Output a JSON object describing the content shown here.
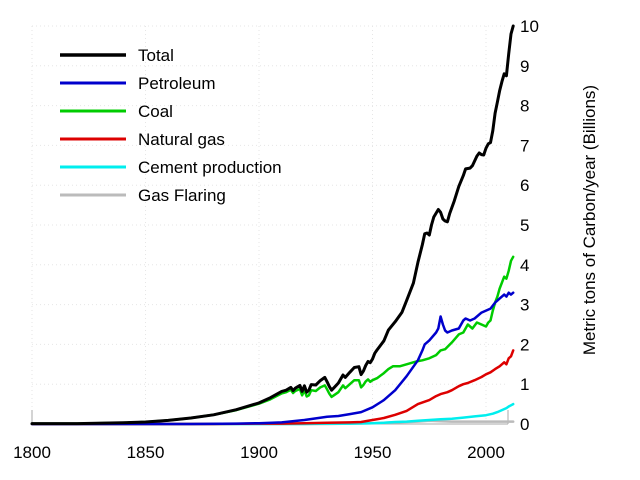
{
  "chart_data": {
    "type": "line",
    "title": "",
    "xlabel": "",
    "ylabel": "Metric tons of Carbon/year (Billions)",
    "xlim": [
      1800,
      2012
    ],
    "ylim": [
      0,
      10
    ],
    "x_ticks": [
      "1800",
      "1850",
      "1900",
      "1950",
      "2000"
    ],
    "y_ticks": [
      "0",
      "1",
      "2",
      "3",
      "4",
      "5",
      "6",
      "7",
      "8",
      "9",
      "10"
    ],
    "grid": true,
    "legend_position": "top-left",
    "series": [
      {
        "name": "Total",
        "color": "#000000",
        "points": [
          [
            1800,
            0.01
          ],
          [
            1820,
            0.01
          ],
          [
            1840,
            0.03
          ],
          [
            1850,
            0.05
          ],
          [
            1860,
            0.09
          ],
          [
            1870,
            0.15
          ],
          [
            1880,
            0.23
          ],
          [
            1890,
            0.36
          ],
          [
            1900,
            0.53
          ],
          [
            1905,
            0.66
          ],
          [
            1910,
            0.82
          ],
          [
            1912,
            0.85
          ],
          [
            1914,
            0.92
          ],
          [
            1915,
            0.84
          ],
          [
            1916,
            0.9
          ],
          [
            1918,
            0.97
          ],
          [
            1919,
            0.82
          ],
          [
            1920,
            0.96
          ],
          [
            1921,
            0.8
          ],
          [
            1922,
            0.85
          ],
          [
            1923,
            0.99
          ],
          [
            1925,
            0.98
          ],
          [
            1927,
            1.09
          ],
          [
            1929,
            1.17
          ],
          [
            1930,
            1.06
          ],
          [
            1931,
            0.94
          ],
          [
            1932,
            0.85
          ],
          [
            1933,
            0.91
          ],
          [
            1935,
            1.03
          ],
          [
            1937,
            1.23
          ],
          [
            1938,
            1.17
          ],
          [
            1940,
            1.3
          ],
          [
            1942,
            1.42
          ],
          [
            1944,
            1.44
          ],
          [
            1945,
            1.24
          ],
          [
            1946,
            1.33
          ],
          [
            1947,
            1.47
          ],
          [
            1948,
            1.57
          ],
          [
            1949,
            1.54
          ],
          [
            1950,
            1.63
          ],
          [
            1951,
            1.78
          ],
          [
            1952,
            1.86
          ],
          [
            1955,
            2.09
          ],
          [
            1957,
            2.36
          ],
          [
            1960,
            2.57
          ],
          [
            1963,
            2.81
          ],
          [
            1965,
            3.1
          ],
          [
            1968,
            3.54
          ],
          [
            1970,
            4.06
          ],
          [
            1972,
            4.51
          ],
          [
            1973,
            4.78
          ],
          [
            1974,
            4.8
          ],
          [
            1975,
            4.75
          ],
          [
            1976,
            5.0
          ],
          [
            1977,
            5.2
          ],
          [
            1979,
            5.39
          ],
          [
            1980,
            5.32
          ],
          [
            1981,
            5.15
          ],
          [
            1982,
            5.1
          ],
          [
            1983,
            5.08
          ],
          [
            1984,
            5.29
          ],
          [
            1986,
            5.6
          ],
          [
            1988,
            5.97
          ],
          [
            1990,
            6.24
          ],
          [
            1991,
            6.41
          ],
          [
            1992,
            6.42
          ],
          [
            1993,
            6.43
          ],
          [
            1994,
            6.49
          ],
          [
            1996,
            6.73
          ],
          [
            1997,
            6.81
          ],
          [
            1998,
            6.77
          ],
          [
            1999,
            6.76
          ],
          [
            2000,
            6.93
          ],
          [
            2001,
            7.04
          ],
          [
            2002,
            7.07
          ],
          [
            2003,
            7.37
          ],
          [
            2004,
            7.81
          ],
          [
            2005,
            8.09
          ],
          [
            2006,
            8.37
          ],
          [
            2007,
            8.6
          ],
          [
            2008,
            8.8
          ],
          [
            2009,
            8.75
          ],
          [
            2010,
            9.3
          ],
          [
            2011,
            9.8
          ],
          [
            2012,
            10.0
          ]
        ]
      },
      {
        "name": "Petroleum",
        "color": "#0000cc",
        "points": [
          [
            1800,
            0
          ],
          [
            1870,
            0.0
          ],
          [
            1890,
            0.01
          ],
          [
            1900,
            0.02
          ],
          [
            1910,
            0.04
          ],
          [
            1920,
            0.1
          ],
          [
            1925,
            0.14
          ],
          [
            1930,
            0.18
          ],
          [
            1935,
            0.2
          ],
          [
            1940,
            0.25
          ],
          [
            1945,
            0.3
          ],
          [
            1950,
            0.42
          ],
          [
            1955,
            0.6
          ],
          [
            1960,
            0.85
          ],
          [
            1965,
            1.2
          ],
          [
            1970,
            1.6
          ],
          [
            1972,
            1.85
          ],
          [
            1973,
            2.0
          ],
          [
            1975,
            2.1
          ],
          [
            1978,
            2.3
          ],
          [
            1979,
            2.4
          ],
          [
            1980,
            2.7
          ],
          [
            1981,
            2.5
          ],
          [
            1982,
            2.35
          ],
          [
            1983,
            2.3
          ],
          [
            1985,
            2.35
          ],
          [
            1988,
            2.4
          ],
          [
            1990,
            2.6
          ],
          [
            1991,
            2.65
          ],
          [
            1993,
            2.6
          ],
          [
            1995,
            2.65
          ],
          [
            1998,
            2.8
          ],
          [
            2000,
            2.85
          ],
          [
            2002,
            2.9
          ],
          [
            2004,
            3.05
          ],
          [
            2006,
            3.15
          ],
          [
            2008,
            3.25
          ],
          [
            2009,
            3.2
          ],
          [
            2010,
            3.3
          ],
          [
            2011,
            3.25
          ],
          [
            2012,
            3.3
          ]
        ]
      },
      {
        "name": "Coal",
        "color": "#00cc00",
        "points": [
          [
            1800,
            0.01
          ],
          [
            1820,
            0.01
          ],
          [
            1840,
            0.03
          ],
          [
            1850,
            0.05
          ],
          [
            1860,
            0.09
          ],
          [
            1870,
            0.15
          ],
          [
            1880,
            0.23
          ],
          [
            1890,
            0.35
          ],
          [
            1900,
            0.51
          ],
          [
            1905,
            0.62
          ],
          [
            1910,
            0.77
          ],
          [
            1912,
            0.8
          ],
          [
            1914,
            0.86
          ],
          [
            1915,
            0.78
          ],
          [
            1916,
            0.83
          ],
          [
            1918,
            0.88
          ],
          [
            1919,
            0.72
          ],
          [
            1920,
            0.85
          ],
          [
            1921,
            0.69
          ],
          [
            1922,
            0.72
          ],
          [
            1923,
            0.85
          ],
          [
            1925,
            0.83
          ],
          [
            1927,
            0.92
          ],
          [
            1929,
            0.97
          ],
          [
            1930,
            0.87
          ],
          [
            1931,
            0.76
          ],
          [
            1932,
            0.68
          ],
          [
            1933,
            0.72
          ],
          [
            1935,
            0.8
          ],
          [
            1937,
            0.97
          ],
          [
            1938,
            0.9
          ],
          [
            1940,
            1.0
          ],
          [
            1942,
            1.1
          ],
          [
            1944,
            1.1
          ],
          [
            1945,
            0.92
          ],
          [
            1946,
            0.98
          ],
          [
            1947,
            1.07
          ],
          [
            1948,
            1.12
          ],
          [
            1949,
            1.06
          ],
          [
            1950,
            1.1
          ],
          [
            1952,
            1.15
          ],
          [
            1955,
            1.28
          ],
          [
            1957,
            1.38
          ],
          [
            1959,
            1.45
          ],
          [
            1960,
            1.45
          ],
          [
            1962,
            1.45
          ],
          [
            1965,
            1.5
          ],
          [
            1968,
            1.55
          ],
          [
            1970,
            1.58
          ],
          [
            1972,
            1.6
          ],
          [
            1975,
            1.65
          ],
          [
            1978,
            1.73
          ],
          [
            1980,
            1.85
          ],
          [
            1982,
            1.88
          ],
          [
            1985,
            2.05
          ],
          [
            1988,
            2.25
          ],
          [
            1990,
            2.3
          ],
          [
            1992,
            2.5
          ],
          [
            1994,
            2.4
          ],
          [
            1996,
            2.55
          ],
          [
            1998,
            2.5
          ],
          [
            2000,
            2.45
          ],
          [
            2001,
            2.55
          ],
          [
            2002,
            2.6
          ],
          [
            2003,
            2.85
          ],
          [
            2004,
            3.05
          ],
          [
            2005,
            3.2
          ],
          [
            2006,
            3.4
          ],
          [
            2007,
            3.55
          ],
          [
            2008,
            3.7
          ],
          [
            2009,
            3.65
          ],
          [
            2010,
            3.85
          ],
          [
            2011,
            4.1
          ],
          [
            2012,
            4.2
          ]
        ]
      },
      {
        "name": "Natural gas",
        "color": "#dd0000",
        "points": [
          [
            1800,
            0
          ],
          [
            1880,
            0.0
          ],
          [
            1900,
            0.01
          ],
          [
            1910,
            0.01
          ],
          [
            1920,
            0.02
          ],
          [
            1930,
            0.03
          ],
          [
            1940,
            0.04
          ],
          [
            1945,
            0.05
          ],
          [
            1950,
            0.1
          ],
          [
            1955,
            0.15
          ],
          [
            1960,
            0.23
          ],
          [
            1965,
            0.33
          ],
          [
            1970,
            0.5
          ],
          [
            1975,
            0.6
          ],
          [
            1978,
            0.7
          ],
          [
            1980,
            0.75
          ],
          [
            1983,
            0.8
          ],
          [
            1985,
            0.85
          ],
          [
            1988,
            0.95
          ],
          [
            1990,
            1.0
          ],
          [
            1992,
            1.03
          ],
          [
            1995,
            1.1
          ],
          [
            1998,
            1.18
          ],
          [
            2000,
            1.25
          ],
          [
            2002,
            1.3
          ],
          [
            2004,
            1.38
          ],
          [
            2006,
            1.45
          ],
          [
            2008,
            1.55
          ],
          [
            2009,
            1.5
          ],
          [
            2010,
            1.65
          ],
          [
            2011,
            1.7
          ],
          [
            2012,
            1.85
          ]
        ]
      },
      {
        "name": "Cement production",
        "color": "#00eeee",
        "points": [
          [
            1800,
            0
          ],
          [
            1920,
            0.0
          ],
          [
            1930,
            0.01
          ],
          [
            1940,
            0.01
          ],
          [
            1950,
            0.02
          ],
          [
            1955,
            0.03
          ],
          [
            1960,
            0.05
          ],
          [
            1965,
            0.06
          ],
          [
            1970,
            0.08
          ],
          [
            1975,
            0.1
          ],
          [
            1980,
            0.12
          ],
          [
            1985,
            0.13
          ],
          [
            1990,
            0.16
          ],
          [
            1995,
            0.19
          ],
          [
            2000,
            0.22
          ],
          [
            2003,
            0.26
          ],
          [
            2005,
            0.3
          ],
          [
            2007,
            0.35
          ],
          [
            2009,
            0.4
          ],
          [
            2010,
            0.44
          ],
          [
            2011,
            0.47
          ],
          [
            2012,
            0.5
          ]
        ]
      },
      {
        "name": "Gas Flaring",
        "color": "#bbbbbb",
        "points": [
          [
            1800,
            0
          ],
          [
            1930,
            0.0
          ],
          [
            1950,
            0.02
          ],
          [
            1960,
            0.04
          ],
          [
            1965,
            0.05
          ],
          [
            1970,
            0.06
          ],
          [
            1975,
            0.08
          ],
          [
            1980,
            0.07
          ],
          [
            1985,
            0.06
          ],
          [
            1990,
            0.06
          ],
          [
            2000,
            0.06
          ],
          [
            2005,
            0.06
          ],
          [
            2012,
            0.06
          ]
        ]
      }
    ]
  }
}
